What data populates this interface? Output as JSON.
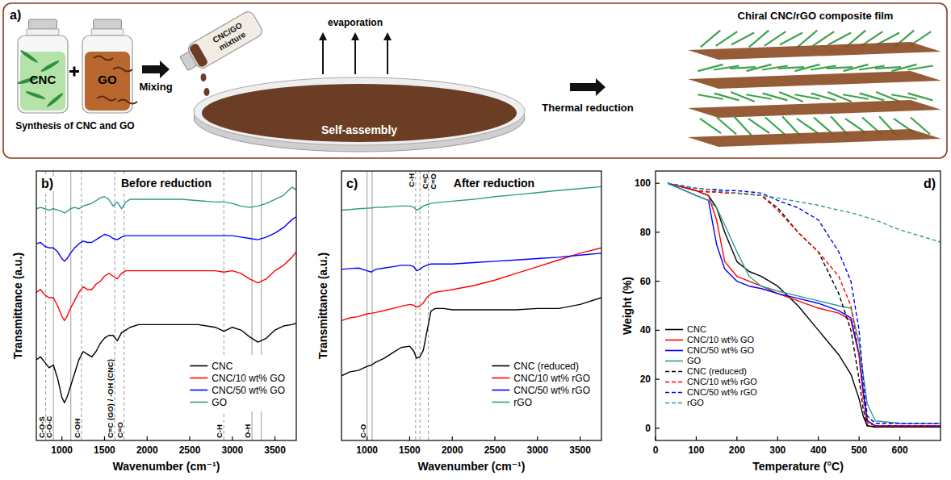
{
  "diagram": {
    "panel_label": "a)",
    "vial_cnc": "CNC",
    "vial_go": "GO",
    "synthesis": "Synthesis of CNC and GO",
    "mixing": "Mixing",
    "mixture": "CNC/GO mixture",
    "evaporation": "evaporation",
    "self_assembly": "Self-assembly",
    "thermal_reduction": "Thermal reduction",
    "film": "Chiral CNC/rGO composite film"
  },
  "chart_data": [
    {
      "type": "line",
      "panel_label": "b)",
      "title": "Before reduction",
      "x_label": "Wavenumber (cm⁻¹)",
      "y_label": "Transmittance (a.u.)",
      "x": [
        700,
        750,
        800,
        850,
        900,
        950,
        1000,
        1030,
        1060,
        1100,
        1150,
        1200,
        1250,
        1300,
        1350,
        1400,
        1450,
        1500,
        1550,
        1600,
        1650,
        1700,
        1750,
        1800,
        1900,
        2000,
        2200,
        2400,
        2600,
        2800,
        2900,
        3000,
        3100,
        3200,
        3300,
        3400,
        3500,
        3600,
        3700,
        3750
      ],
      "series": [
        {
          "name": "CNC",
          "color": "#000000",
          "line_style": "solid",
          "values": [
            3.0,
            3.1,
            2.9,
            2.7,
            2.8,
            2.3,
            1.6,
            1.4,
            1.6,
            2.0,
            2.5,
            3.0,
            3.3,
            3.2,
            3.1,
            3.3,
            3.6,
            3.8,
            3.9,
            3.9,
            3.7,
            4.0,
            4.1,
            4.2,
            4.3,
            4.3,
            4.3,
            4.3,
            4.3,
            4.2,
            4.05,
            4.2,
            4.1,
            3.85,
            3.65,
            3.8,
            4.1,
            4.25,
            4.3,
            4.35
          ]
        },
        {
          "name": "CNC/10 wt% GO",
          "color": "#ff0000",
          "line_style": "solid",
          "values": [
            5.5,
            5.6,
            5.4,
            5.3,
            5.3,
            5.0,
            4.6,
            4.45,
            4.6,
            4.9,
            5.2,
            5.5,
            5.7,
            5.6,
            5.6,
            5.8,
            5.9,
            6.1,
            6.2,
            6.1,
            6.0,
            6.2,
            6.3,
            6.3,
            6.3,
            6.3,
            6.3,
            6.3,
            6.3,
            6.3,
            6.25,
            6.3,
            6.2,
            6.0,
            5.85,
            6.0,
            6.3,
            6.5,
            6.8,
            7.0
          ]
        },
        {
          "name": "CNC/50 wt% GO",
          "color": "#0000ff",
          "line_style": "solid",
          "values": [
            7.3,
            7.35,
            7.2,
            7.15,
            7.15,
            7.0,
            6.75,
            6.65,
            6.75,
            6.95,
            7.15,
            7.3,
            7.4,
            7.35,
            7.35,
            7.45,
            7.55,
            7.65,
            7.6,
            7.5,
            7.45,
            7.55,
            7.6,
            7.6,
            7.6,
            7.6,
            7.6,
            7.6,
            7.6,
            7.6,
            7.6,
            7.6,
            7.55,
            7.5,
            7.45,
            7.55,
            7.7,
            7.9,
            8.2,
            8.3
          ]
        },
        {
          "name": "GO",
          "color": "#2e9b8b",
          "line_style": "solid",
          "values": [
            8.6,
            8.65,
            8.6,
            8.55,
            8.6,
            8.55,
            8.5,
            8.45,
            8.5,
            8.6,
            8.65,
            8.6,
            8.7,
            8.75,
            8.8,
            8.9,
            9.0,
            9.05,
            8.95,
            8.7,
            8.85,
            8.6,
            8.85,
            8.95,
            8.95,
            8.95,
            8.95,
            8.95,
            8.9,
            8.85,
            8.85,
            8.8,
            8.7,
            8.65,
            8.7,
            8.8,
            8.95,
            9.1,
            9.4,
            9.3
          ]
        }
      ],
      "xlim": [
        700,
        3750
      ],
      "xticks": [
        1000,
        1500,
        2000,
        2500,
        3000,
        3500
      ],
      "ylim": [
        0,
        10
      ],
      "tick_labels": "x",
      "legend": "lower right",
      "annotations": [
        {
          "label": "C-O-S",
          "x": [
            810
          ],
          "line_style": "dashed"
        },
        {
          "label": "C-O-C",
          "x": [
            900,
            1105
          ],
          "line_style": "solid"
        },
        {
          "label": "C-OH",
          "x": [
            1230
          ],
          "line_style": "dashed"
        },
        {
          "label": "C=C (GO) / -OH (CNC)",
          "x": [
            1620
          ],
          "line_style": "dashed"
        },
        {
          "label": "C=O",
          "x": [
            1730
          ],
          "line_style": "dashed"
        },
        {
          "label": "C-H",
          "x": [
            2900
          ],
          "line_style": "dashed"
        },
        {
          "label": "O-H",
          "x": [
            3230,
            3340
          ],
          "line_style": "solid"
        }
      ]
    },
    {
      "type": "line",
      "panel_label": "c)",
      "title": "After reduction",
      "x_label": "Wavenumber (cm⁻¹)",
      "y_label": "Transmittance (a.u.)",
      "x": [
        700,
        800,
        900,
        1000,
        1050,
        1100,
        1200,
        1300,
        1400,
        1500,
        1550,
        1580,
        1620,
        1660,
        1700,
        1750,
        1800,
        1900,
        2000,
        2250,
        2500,
        2750,
        3000,
        3250,
        3500,
        3750
      ],
      "series": [
        {
          "name": "CNC (reduced)",
          "color": "#000000",
          "line_style": "solid",
          "values": [
            2.4,
            2.55,
            2.6,
            2.75,
            2.8,
            2.9,
            3.05,
            3.25,
            3.45,
            3.5,
            3.3,
            3.05,
            3.1,
            3.35,
            4.0,
            4.8,
            4.9,
            4.9,
            4.85,
            4.85,
            4.85,
            4.85,
            4.9,
            4.9,
            5.05,
            5.3
          ]
        },
        {
          "name": "CNC/10 wt% rGO",
          "color": "#ff0000",
          "line_style": "solid",
          "values": [
            4.45,
            4.55,
            4.6,
            4.7,
            4.72,
            4.75,
            4.82,
            4.9,
            4.98,
            5.05,
            5.02,
            4.95,
            5.0,
            5.1,
            5.3,
            5.45,
            5.5,
            5.55,
            5.6,
            5.75,
            5.95,
            6.2,
            6.45,
            6.7,
            6.95,
            7.15
          ]
        },
        {
          "name": "CNC/50 wt% rGO",
          "color": "#0000ff",
          "line_style": "solid",
          "values": [
            6.35,
            6.38,
            6.4,
            6.3,
            6.25,
            6.35,
            6.4,
            6.45,
            6.5,
            6.5,
            6.45,
            6.3,
            6.35,
            6.45,
            6.5,
            6.55,
            6.55,
            6.55,
            6.55,
            6.6,
            6.65,
            6.7,
            6.75,
            6.8,
            6.88,
            6.95
          ]
        },
        {
          "name": "rGO",
          "color": "#2e9b8b",
          "line_style": "solid",
          "values": [
            8.55,
            8.57,
            8.6,
            8.62,
            8.63,
            8.65,
            8.66,
            8.68,
            8.7,
            8.7,
            8.65,
            8.55,
            8.6,
            8.7,
            8.75,
            8.8,
            8.82,
            8.85,
            8.88,
            8.95,
            9.05,
            9.12,
            9.2,
            9.28,
            9.35,
            9.42
          ]
        }
      ],
      "xlim": [
        700,
        3750
      ],
      "xticks": [
        1000,
        1500,
        2000,
        2500,
        3000,
        3500
      ],
      "ylim": [
        0,
        10
      ],
      "tick_labels": "x",
      "legend": "lower right",
      "annotations": [
        {
          "label": "C-O",
          "x": [
            1000,
            1060
          ],
          "line_style": "solid"
        },
        {
          "label": "C-H",
          "x": [
            1570
          ],
          "line_style": "dashed"
        },
        {
          "label": "C=C",
          "x": [
            1620
          ],
          "line_style": "dashed"
        },
        {
          "label": "C=O",
          "x": [
            1720
          ],
          "line_style": "dashed"
        }
      ]
    },
    {
      "type": "line",
      "panel_label": "d)",
      "x_label": "Temperature (°C)",
      "y_label": "Weight (%)",
      "x": [
        30,
        100,
        130,
        150,
        170,
        200,
        230,
        260,
        300,
        350,
        400,
        450,
        480,
        500,
        510,
        520,
        540,
        600,
        700
      ],
      "series": [
        {
          "name": "CNC",
          "color": "#000000",
          "line_style": "solid",
          "values": [
            100,
            97,
            95,
            90,
            80,
            68,
            64,
            62,
            58,
            50,
            40,
            30,
            22,
            12,
            5,
            1,
            0.5,
            0.5,
            0.5
          ]
        },
        {
          "name": "CNC/10 wt% GO",
          "color": "#ff0000",
          "line_style": "solid",
          "values": [
            100,
            97,
            95,
            85,
            68,
            62,
            60,
            58,
            55,
            52,
            49,
            47,
            44,
            30,
            15,
            3,
            1,
            1,
            1
          ]
        },
        {
          "name": "CNC/50 wt% GO",
          "color": "#0000ff",
          "line_style": "solid",
          "values": [
            100,
            95,
            93,
            75,
            65,
            60,
            58,
            57,
            55,
            53,
            51,
            48,
            45,
            30,
            15,
            3,
            1,
            1,
            1
          ]
        },
        {
          "name": "GO",
          "color": "#2e9b8b",
          "line_style": "solid",
          "values": [
            100,
            95,
            93,
            90,
            83,
            72,
            62,
            58,
            56,
            54,
            52,
            50,
            49,
            35,
            22,
            10,
            3,
            2,
            2
          ]
        },
        {
          "name": "CNC (reduced)",
          "color": "#000000",
          "line_style": "dashed",
          "values": [
            100,
            97,
            96.5,
            96.5,
            96,
            96,
            95.5,
            95,
            90,
            80,
            72,
            55,
            40,
            20,
            8,
            1,
            0.5,
            0.5,
            0.5
          ]
        },
        {
          "name": "CNC/10 wt% rGO",
          "color": "#ff0000",
          "line_style": "dashed",
          "values": [
            100,
            97,
            96.5,
            96.5,
            96,
            96,
            95.5,
            95,
            89,
            80,
            72,
            62,
            50,
            30,
            12,
            2,
            1,
            1,
            1
          ]
        },
        {
          "name": "CNC/50 wt% rGO",
          "color": "#0000ff",
          "line_style": "dashed",
          "values": [
            100,
            98,
            97.5,
            97.5,
            97,
            97,
            96.5,
            96,
            93,
            90,
            85,
            72,
            60,
            40,
            20,
            5,
            2,
            2,
            2
          ]
        },
        {
          "name": "rGO",
          "color": "#2e9b8b",
          "line_style": "dashed",
          "values": [
            100,
            98,
            97.5,
            97,
            96.5,
            96,
            95.5,
            95,
            94,
            92.5,
            91,
            89,
            88,
            87,
            86.5,
            86,
            85,
            81,
            76
          ]
        }
      ],
      "xlim": [
        0,
        700
      ],
      "xticks": [
        0,
        100,
        200,
        300,
        400,
        500,
        600
      ],
      "ylim": [
        -5,
        105
      ],
      "yticks": [
        0,
        20,
        40,
        60,
        80,
        100
      ],
      "legend": "lower left"
    }
  ]
}
